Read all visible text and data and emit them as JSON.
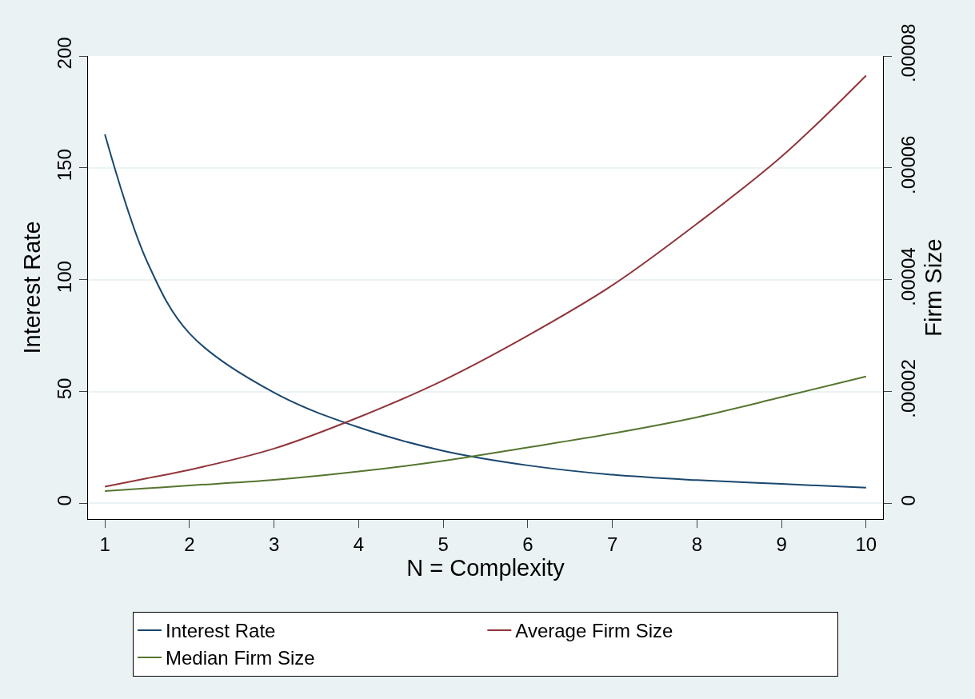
{
  "chart_data": {
    "type": "line",
    "xlabel": "N = Complexity",
    "ylabel": "Interest Rate",
    "y2label": "Firm Size",
    "x": [
      1,
      1.5,
      2,
      3,
      4,
      5,
      6,
      7,
      8,
      9,
      10
    ],
    "series": [
      {
        "name": "Interest Rate",
        "color": "#1a476f",
        "values": [
          165,
          108,
          76,
          49.5,
          34,
          23.5,
          17,
          12.8,
          10.4,
          8.7,
          7
        ]
      },
      {
        "name": "Average Firm Size",
        "color": "#90353b",
        "axis": "y2",
        "values": [
          3e-06,
          4.5e-06,
          6e-06,
          9.8e-06,
          1.54e-05,
          2.2e-05,
          3e-05,
          3.9e-05,
          5e-05,
          6.2e-05,
          7.65e-05
        ]
      },
      {
        "name": "Median Firm Size",
        "color": "#55752f",
        "axis": "y2",
        "values": [
          2.2e-06,
          2.7e-06,
          3.2e-06,
          4.2e-06,
          5.7e-06,
          7.6e-06,
          1e-05,
          1.25e-05,
          1.54e-05,
          1.9e-05,
          2.27e-05
        ]
      }
    ],
    "xlim": [
      0.8,
      10.2
    ],
    "xticks": [
      1,
      2,
      3,
      4,
      5,
      6,
      7,
      8,
      9,
      10
    ],
    "ylim": [
      -7,
      200
    ],
    "yticks": [
      0,
      50,
      100,
      150,
      200
    ],
    "y2lim": [
      -2.8e-06,
      8e-05
    ],
    "y2ticks": [
      {
        "value": 0,
        "label": "0"
      },
      {
        "value": 2e-05,
        "label": ".00002"
      },
      {
        "value": 4e-05,
        "label": ".00004"
      },
      {
        "value": 6e-05,
        "label": ".00006"
      },
      {
        "value": 8e-05,
        "label": ".00008"
      }
    ],
    "grid": "y",
    "legend": "bottom",
    "marker": "none",
    "line_style": "solid"
  }
}
